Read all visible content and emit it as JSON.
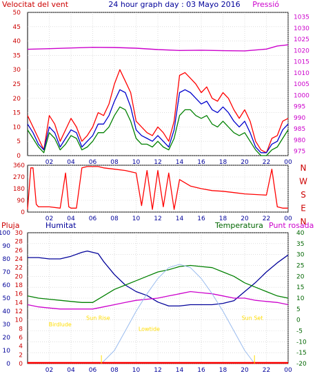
{
  "colors": {
    "wind": "#ff0000",
    "wind_avg": "#0000cc",
    "gust_green": "#008000",
    "pressure": "#cc00cc",
    "temperature": "#008000",
    "humidity": "#000099",
    "dewpoint": "#cc00cc",
    "rain": "#ff0000",
    "solar": "#99bbee",
    "astro": "#ffdd00",
    "axis_red": "#cc0000",
    "axis_blue": "#000099",
    "axis_green": "#006600"
  },
  "chart_data": [
    {
      "type": "line",
      "title": "24 hour graph day : 03 Mayo 2016",
      "left_label": "Velocitat del vent",
      "right_label": "Pressió",
      "x_ticks": [
        "02",
        "04",
        "06",
        "08",
        "10",
        "12",
        "14",
        "16",
        "18",
        "20",
        "22",
        "00"
      ],
      "y_ticks": [
        "0",
        "5",
        "10",
        "15",
        "20",
        "25",
        "30",
        "35",
        "40",
        "45",
        "50"
      ],
      "y2_ticks": [
        "975",
        "980",
        "985",
        "990",
        "995",
        "1000",
        "1005",
        "1010",
        "1015",
        "1020",
        "1025",
        "1030",
        "1035"
      ],
      "xlim": [
        0,
        24
      ],
      "ylim": [
        0,
        50
      ],
      "y2lim": [
        973,
        1037
      ],
      "grid": true,
      "series": [
        {
          "key": "gust",
          "color_key": "wind",
          "x": [
            0,
            0.5,
            1,
            1.5,
            2,
            2.5,
            3,
            3.5,
            4,
            4.5,
            5,
            5.5,
            6,
            6.5,
            7,
            7.5,
            8,
            8.5,
            9,
            9.5,
            10,
            10.5,
            11,
            11.5,
            12,
            12.5,
            13,
            13.5,
            14,
            14.5,
            15,
            15.5,
            16,
            16.5,
            17,
            17.5,
            18,
            18.5,
            19,
            19.5,
            20,
            20.5,
            21,
            21.5,
            22,
            22.5,
            23,
            23.5,
            24
          ],
          "values": [
            14,
            10,
            6,
            2,
            14,
            11,
            5,
            9,
            13,
            10,
            5,
            7,
            10,
            15,
            14,
            18,
            25,
            30,
            26,
            22,
            12,
            10,
            8,
            7,
            10,
            8,
            5,
            12,
            28,
            29,
            27,
            25,
            22,
            24,
            20,
            19,
            22,
            20,
            16,
            13,
            16,
            12,
            5,
            2,
            1,
            6,
            7,
            12,
            13
          ]
        },
        {
          "key": "avg",
          "color_key": "wind_avg",
          "x": [
            0,
            0.5,
            1,
            1.5,
            2,
            2.5,
            3,
            3.5,
            4,
            4.5,
            5,
            5.5,
            6,
            6.5,
            7,
            7.5,
            8,
            8.5,
            9,
            9.5,
            10,
            10.5,
            11,
            11.5,
            12,
            12.5,
            13,
            13.5,
            14,
            14.5,
            15,
            15.5,
            16,
            16.5,
            17,
            17.5,
            18,
            18.5,
            19,
            19.5,
            20,
            20.5,
            21,
            21.5,
            22,
            22.5,
            23,
            23.5,
            24
          ],
          "values": [
            11,
            8,
            4,
            2,
            10,
            8,
            3,
            6,
            9,
            8,
            3,
            5,
            7,
            11,
            11,
            14,
            19,
            23,
            22,
            17,
            9,
            7,
            6,
            5,
            7,
            5,
            3,
            9,
            22,
            23,
            22,
            20,
            18,
            19,
            16,
            15,
            17,
            15,
            12,
            10,
            12,
            8,
            3,
            1,
            1,
            4,
            5,
            9,
            11
          ]
        },
        {
          "key": "wind",
          "color_key": "gust_green",
          "x": [
            0,
            0.5,
            1,
            1.5,
            2,
            2.5,
            3,
            3.5,
            4,
            4.5,
            5,
            5.5,
            6,
            6.5,
            7,
            7.5,
            8,
            8.5,
            9,
            9.5,
            10,
            10.5,
            11,
            11.5,
            12,
            12.5,
            13,
            13.5,
            14,
            14.5,
            15,
            15.5,
            16,
            16.5,
            17,
            17.5,
            18,
            18.5,
            19,
            19.5,
            20,
            20.5,
            21,
            21.5,
            22,
            22.5,
            23,
            23.5,
            24
          ],
          "values": [
            9,
            6,
            3,
            1,
            8,
            6,
            2,
            4,
            7,
            6,
            2,
            3,
            5,
            8,
            8,
            10,
            14,
            17,
            16,
            12,
            6,
            4,
            4,
            3,
            5,
            3,
            2,
            6,
            14,
            16,
            16,
            14,
            13,
            14,
            11,
            10,
            12,
            10,
            8,
            7,
            8,
            5,
            2,
            0,
            0,
            2,
            3,
            6,
            9
          ]
        },
        {
          "key": "pressure",
          "color_key": "pressure",
          "axis": "right",
          "x": [
            0,
            2,
            4,
            6,
            8,
            10,
            12,
            14,
            16,
            18,
            20,
            22,
            23,
            24
          ],
          "values": [
            1020.5,
            1020.8,
            1021.1,
            1021.4,
            1021.3,
            1021.0,
            1020.4,
            1020.0,
            1020.1,
            1019.9,
            1019.8,
            1020.6,
            1022.0,
            1022.5
          ]
        }
      ]
    },
    {
      "type": "line",
      "right_letters": [
        "N",
        "W",
        "S",
        "E",
        "N"
      ],
      "x_ticks": [
        "02",
        "04",
        "06",
        "08",
        "10",
        "12",
        "14",
        "16",
        "18",
        "20",
        "22",
        "00"
      ],
      "y_ticks": [
        "0",
        "90",
        "180",
        "270",
        "360"
      ],
      "xlim": [
        0,
        24
      ],
      "ylim": [
        0,
        360
      ],
      "grid": true,
      "series": [
        {
          "key": "direction",
          "color_key": "wind",
          "x": [
            0,
            0.3,
            0.5,
            0.8,
            1,
            2,
            3,
            3.5,
            3.8,
            4,
            4.5,
            5,
            5.5,
            6,
            6.5,
            7,
            8,
            9,
            10,
            10.5,
            11,
            11.5,
            12,
            12.5,
            13,
            13.5,
            14,
            15,
            16,
            17,
            18,
            19,
            20,
            21,
            22,
            22.5,
            23,
            23.5,
            24
          ],
          "values": [
            20,
            340,
            340,
            60,
            40,
            40,
            30,
            300,
            40,
            30,
            30,
            340,
            350,
            350,
            350,
            340,
            330,
            320,
            300,
            50,
            320,
            20,
            320,
            40,
            300,
            20,
            250,
            200,
            180,
            165,
            160,
            150,
            140,
            135,
            130,
            330,
            40,
            30,
            30
          ]
        }
      ]
    },
    {
      "type": "line",
      "left_label_1": "Pluja",
      "left_label_2": "Humitat",
      "right_label_1": "Temperatura",
      "right_label_2": "Punt rosada",
      "x_ticks": [
        "02",
        "04",
        "06",
        "08",
        "10",
        "12",
        "14",
        "16",
        "18",
        "20",
        "22",
        "00"
      ],
      "rain_ticks": [
        "0",
        "2",
        "4",
        "6",
        "8",
        "10",
        "12",
        "14",
        "16",
        "18",
        "20",
        "22",
        "24",
        "26",
        "28",
        "30"
      ],
      "humidity_ticks": [
        "0",
        "10",
        "20",
        "30",
        "40",
        "50",
        "60",
        "70",
        "80",
        "90",
        "100"
      ],
      "temp_ticks": [
        "-20",
        "-15",
        "-10",
        "-5",
        "0",
        "5",
        "10",
        "15",
        "20",
        "25",
        "30",
        "35",
        "40"
      ],
      "xlim": [
        0,
        24
      ],
      "humidity_lim": [
        0,
        100
      ],
      "temp_lim": [
        -20,
        40
      ],
      "grid": true,
      "labels": [
        {
          "text": "Birdlude",
          "x": 3.0,
          "y": -3
        },
        {
          "text": "Sun Rise",
          "x": 6.5,
          "y": 0
        },
        {
          "text": "Lowtide",
          "x": 11.2,
          "y": -5
        },
        {
          "text": "Sun Set",
          "x": 20.7,
          "y": 0
        }
      ],
      "series": [
        {
          "key": "humidity",
          "color_key": "humidity",
          "axis": "humidity",
          "x": [
            0,
            1,
            2,
            3,
            4,
            5,
            5.5,
            6,
            6.5,
            7,
            8,
            9,
            10,
            11,
            12,
            13,
            14,
            15,
            16,
            17,
            18,
            19,
            20,
            21,
            22,
            23,
            24
          ],
          "values": [
            81,
            81,
            80,
            80,
            82,
            85,
            86,
            85,
            84,
            78,
            68,
            60,
            55,
            52,
            47,
            44,
            44,
            45,
            45,
            45,
            46,
            48,
            55,
            62,
            70,
            77,
            83
          ]
        },
        {
          "key": "temperature",
          "color_key": "temperature",
          "axis": "temp",
          "x": [
            0,
            1,
            2,
            3,
            4,
            5,
            6,
            7,
            8,
            9,
            10,
            11,
            12,
            13,
            14,
            15,
            16,
            17,
            18,
            19,
            20,
            21,
            22,
            23,
            24
          ],
          "values": [
            11,
            10,
            9.5,
            9,
            8.5,
            8,
            8,
            11,
            14,
            16,
            18,
            20,
            22,
            23,
            24.5,
            25,
            24.5,
            24,
            22,
            20,
            17,
            15,
            13,
            11,
            10
          ]
        },
        {
          "key": "dewpoint",
          "color_key": "dewpoint",
          "axis": "temp",
          "x": [
            0,
            1,
            2,
            3,
            4,
            5,
            6,
            7,
            8,
            9,
            10,
            11,
            12,
            13,
            14,
            15,
            16,
            17,
            18,
            19,
            20,
            21,
            22,
            23,
            24
          ],
          "values": [
            7,
            6,
            5.5,
            5,
            5,
            5,
            5,
            6,
            7,
            8,
            9,
            9.5,
            10,
            11,
            12,
            13,
            12.5,
            12,
            11,
            10,
            10,
            9,
            8.5,
            8,
            7
          ]
        },
        {
          "key": "solar",
          "color_key": "solar",
          "axis": "temp",
          "x": [
            6.8,
            8,
            9,
            10,
            11,
            12,
            13,
            14,
            15,
            16,
            17,
            18,
            19,
            20,
            20.9
          ],
          "values": [
            -20,
            -14,
            -5,
            4,
            12,
            19,
            24,
            25.5,
            24,
            19,
            12,
            4,
            -5,
            -14,
            -20
          ]
        },
        {
          "key": "rain",
          "color_key": "rain",
          "axis": "temp",
          "x": [
            0,
            24
          ],
          "values": [
            -19.7,
            -19.7
          ]
        }
      ]
    }
  ]
}
